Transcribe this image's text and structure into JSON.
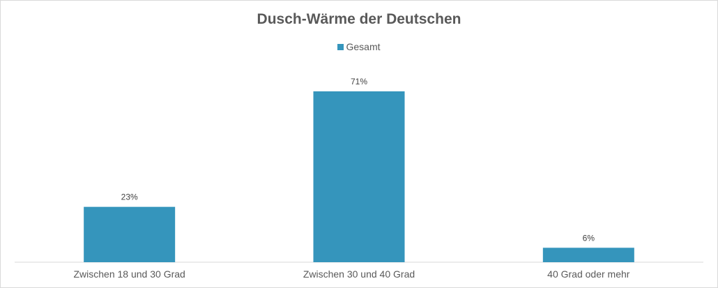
{
  "chart_data": {
    "type": "bar",
    "title": "Dusch-Wärme der Deutschen",
    "categories": [
      "Zwischen 18 und 30 Grad",
      "Zwischen 30 und 40 Grad",
      "40 Grad oder mehr"
    ],
    "series": [
      {
        "name": "Gesamt",
        "values": [
          23,
          71,
          6
        ],
        "color": "#3595bc"
      }
    ],
    "data_labels": [
      "23%",
      "71%",
      "6%"
    ],
    "ylim": [
      0,
      80
    ],
    "grid": false,
    "legend_position": "top",
    "xlabel": "",
    "ylabel": ""
  }
}
